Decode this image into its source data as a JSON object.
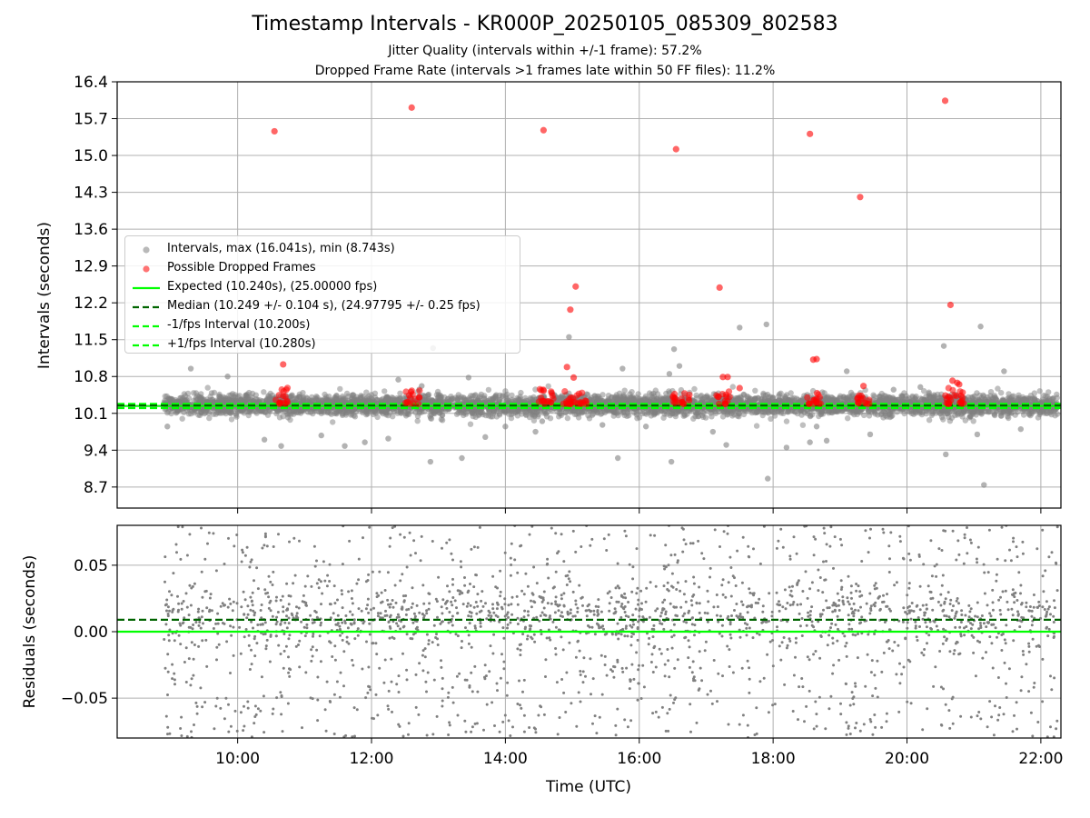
{
  "figure": {
    "title": "Timestamp Intervals - KR000P_20250105_085309_802583",
    "subtitle_1": "Jitter Quality (intervals within +/-1 frame): 57.2%",
    "subtitle_2": "Dropped Frame Rate (intervals >1 frames late within 50 FF files): 11.2%"
  },
  "legend": {
    "placement": "center-left",
    "items": [
      {
        "label": "Intervals, max (16.041s), min (8.743s)",
        "kind": "marker",
        "color": "#808080"
      },
      {
        "label": "Possible Dropped Frames",
        "kind": "marker",
        "color": "#ff0000"
      },
      {
        "label": "Expected (10.240s), (25.00000 fps)",
        "kind": "solid",
        "color": "#00ff00"
      },
      {
        "label": "Median (10.249 +/- 0.104 s), (24.97795 +/- 0.25 fps)",
        "kind": "dashed",
        "color": "#006400"
      },
      {
        "label": "-1/fps Interval (10.200s)",
        "kind": "dashed",
        "color": "#00ff00"
      },
      {
        "label": "+1/fps Interval (10.280s)",
        "kind": "dashed",
        "color": "#00ff00"
      }
    ]
  },
  "chart_data": [
    {
      "type": "scatter",
      "ylabel": "Intervals (seconds)",
      "xlabel": "",
      "x_unit": "hours (UTC)",
      "xlim": [
        8.2,
        22.3
      ],
      "ylim": [
        8.3,
        16.4
      ],
      "yticks": [
        "8.7",
        "9.4",
        "10.1",
        "10.8",
        "11.5",
        "12.2",
        "12.9",
        "13.6",
        "14.3",
        "15.0",
        "15.7",
        "16.4"
      ],
      "xticks": [
        "10:00",
        "12:00",
        "14:00",
        "16:00",
        "18:00",
        "20:00",
        "22:00"
      ],
      "grid": true,
      "reference_lines": {
        "expected": 10.24,
        "median": 10.249,
        "minus_1_fps": 10.2,
        "plus_1_fps": 10.28
      },
      "series": [
        {
          "name": "Intervals, max (16.041s), min (8.743s)",
          "color": "#808080",
          "x_range": [
            8.9,
            22.25
          ],
          "n_points": 4700,
          "band": [
            10.0,
            10.55
          ],
          "outliers": [
            [
              8.95,
              9.85
            ],
            [
              9.3,
              10.95
            ],
            [
              9.85,
              10.8
            ],
            [
              10.4,
              9.6
            ],
            [
              10.65,
              9.48
            ],
            [
              11.25,
              9.68
            ],
            [
              11.6,
              9.48
            ],
            [
              11.9,
              9.55
            ],
            [
              12.25,
              9.62
            ],
            [
              12.4,
              10.74
            ],
            [
              12.75,
              10.62
            ],
            [
              12.88,
              9.18
            ],
            [
              12.92,
              11.34
            ],
            [
              13.35,
              9.25
            ],
            [
              13.45,
              10.78
            ],
            [
              13.7,
              9.65
            ],
            [
              14.0,
              9.85
            ],
            [
              14.45,
              9.75
            ],
            [
              14.55,
              9.95
            ],
            [
              14.95,
              11.55
            ],
            [
              15.1,
              10.4
            ],
            [
              15.45,
              9.88
            ],
            [
              15.68,
              9.25
            ],
            [
              15.75,
              10.95
            ],
            [
              16.1,
              9.85
            ],
            [
              16.45,
              10.85
            ],
            [
              16.48,
              9.18
            ],
            [
              16.52,
              11.32
            ],
            [
              16.6,
              11.0
            ],
            [
              17.1,
              9.75
            ],
            [
              17.3,
              9.5
            ],
            [
              17.5,
              11.73
            ],
            [
              17.9,
              11.79
            ],
            [
              17.92,
              8.86
            ],
            [
              18.2,
              9.45
            ],
            [
              18.55,
              9.55
            ],
            [
              18.65,
              9.85
            ],
            [
              18.8,
              9.58
            ],
            [
              19.1,
              10.9
            ],
            [
              19.45,
              9.7
            ],
            [
              19.8,
              10.55
            ],
            [
              20.2,
              10.6
            ],
            [
              20.55,
              11.38
            ],
            [
              20.58,
              9.32
            ],
            [
              21.05,
              9.7
            ],
            [
              21.1,
              11.75
            ],
            [
              21.15,
              8.74
            ],
            [
              21.45,
              10.9
            ],
            [
              21.7,
              9.8
            ]
          ]
        },
        {
          "name": "Possible Dropped Frames",
          "color": "#ff0000",
          "clusters": [
            {
              "x": [
                10.55,
                10.75
              ],
              "y": [
                10.28,
                10.6
              ],
              "n": 16
            },
            {
              "x": [
                12.5,
                12.72
              ],
              "y": [
                10.28,
                10.6
              ],
              "n": 16
            },
            {
              "x": [
                14.5,
                14.72
              ],
              "y": [
                10.28,
                10.6
              ],
              "n": 18
            },
            {
              "x": [
                14.85,
                15.25
              ],
              "y": [
                10.28,
                10.55
              ],
              "n": 26
            },
            {
              "x": [
                16.5,
                16.75
              ],
              "y": [
                10.28,
                10.48
              ],
              "n": 18
            },
            {
              "x": [
                17.15,
                17.35
              ],
              "y": [
                10.28,
                10.55
              ],
              "n": 14
            },
            {
              "x": [
                18.5,
                18.72
              ],
              "y": [
                10.28,
                10.5
              ],
              "n": 16
            },
            {
              "x": [
                19.25,
                19.45
              ],
              "y": [
                10.28,
                10.45
              ],
              "n": 14
            },
            {
              "x": [
                20.55,
                20.85
              ],
              "y": [
                10.28,
                10.6
              ],
              "n": 24
            }
          ],
          "points": [
            [
              10.55,
              15.46
            ],
            [
              10.68,
              11.03
            ],
            [
              12.6,
              15.91
            ],
            [
              14.57,
              15.48
            ],
            [
              14.92,
              10.98
            ],
            [
              14.97,
              12.07
            ],
            [
              15.02,
              10.78
            ],
            [
              15.05,
              12.51
            ],
            [
              16.55,
              15.12
            ],
            [
              17.2,
              12.49
            ],
            [
              17.25,
              10.79
            ],
            [
              17.32,
              10.79
            ],
            [
              17.5,
              10.58
            ],
            [
              18.55,
              15.41
            ],
            [
              18.6,
              11.12
            ],
            [
              18.65,
              11.13
            ],
            [
              19.3,
              14.21
            ],
            [
              19.35,
              10.62
            ],
            [
              20.57,
              16.04
            ],
            [
              20.65,
              12.16
            ],
            [
              20.68,
              10.72
            ],
            [
              20.75,
              10.68
            ],
            [
              20.78,
              10.65
            ]
          ]
        }
      ]
    },
    {
      "type": "scatter",
      "ylabel": "Residuals (seconds)",
      "xlabel": "Time (UTC)",
      "xlim": [
        8.2,
        22.3
      ],
      "ylim": [
        -0.08,
        0.08
      ],
      "yticks": [
        "−0.05",
        "0.00",
        "0.05"
      ],
      "xticks": [
        "10:00",
        "12:00",
        "14:00",
        "16:00",
        "18:00",
        "20:00",
        "22:00"
      ],
      "grid": true,
      "reference_lines": {
        "zero": 0.0,
        "median_offset": 0.009
      },
      "series": [
        {
          "name": "",
          "color": "#808080",
          "x_range": [
            8.9,
            22.25
          ],
          "n_points": 2200,
          "band": [
            -0.08,
            0.08
          ],
          "center": 0.012
        }
      ]
    }
  ]
}
